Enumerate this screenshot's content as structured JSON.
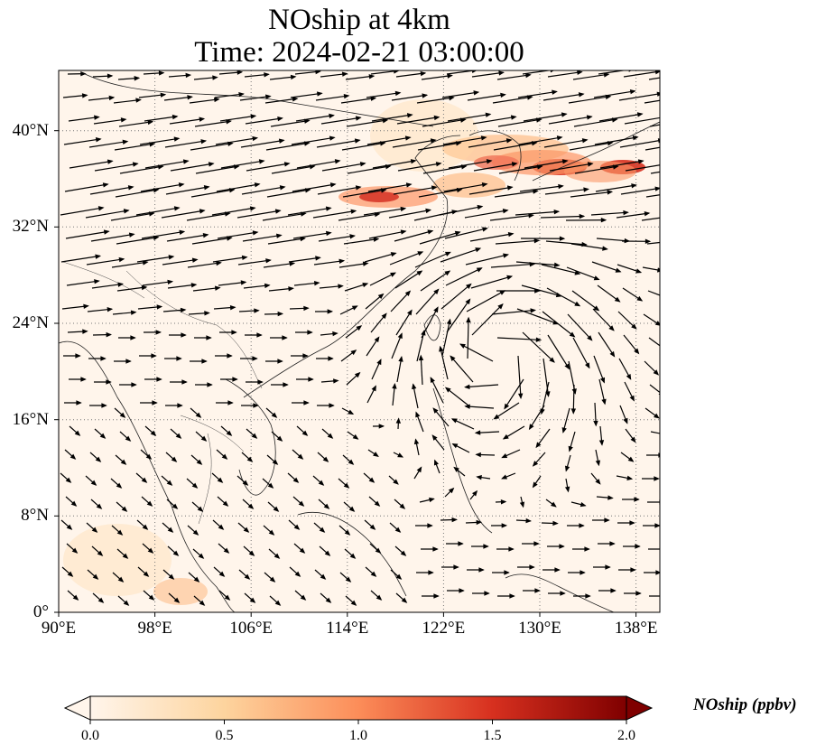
{
  "title": {
    "line1": "NOship at 4km",
    "line2": "Time: 2024-02-21 03:00:00"
  },
  "map": {
    "lon_range": [
      90,
      140
    ],
    "lat_range": [
      0,
      45
    ],
    "projection": "plate-carree",
    "gridlines": "dotted",
    "lat_ticks": [
      "0°",
      "8°N",
      "16°N",
      "24°N",
      "32°N",
      "40°N"
    ],
    "lon_ticks": [
      "90°E",
      "98°E",
      "106°E",
      "114°E",
      "122°E",
      "130°E",
      "138°E"
    ],
    "features": [
      "coastlines",
      "country-borders",
      "wind-vectors",
      "concentration-field"
    ],
    "background_color": "#fff5eb"
  },
  "colorbar": {
    "label": "NOship (ppbv)",
    "ticks": [
      "0.0",
      "0.5",
      "1.0",
      "1.5",
      "2.0"
    ],
    "range": [
      0,
      2
    ],
    "extend": "both",
    "colormap": "OrRd",
    "colors": [
      "#fff5eb",
      "#fdd49e",
      "#fc8d59",
      "#d7301f",
      "#7f0000"
    ]
  }
}
